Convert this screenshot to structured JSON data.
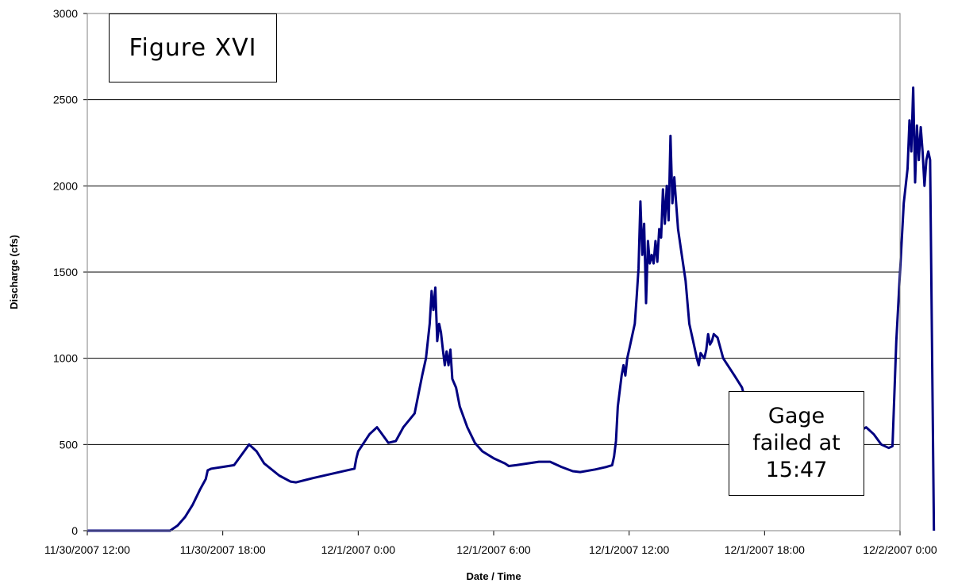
{
  "chart_data": {
    "type": "line",
    "xlabel": "Date / Time",
    "ylabel": "Discharge (cfs)",
    "x_tick_labels": [
      "11/30/2007 12:00",
      "11/30/2007 18:00",
      "12/1/2007 0:00",
      "12/1/2007 6:00",
      "12/1/2007 12:00",
      "12/1/2007 18:00",
      "12/2/2007 0:00"
    ],
    "xlim": [
      "2007-11-30T12:00",
      "2007-12-02T00:00"
    ],
    "y_ticks": [
      0,
      500,
      1000,
      1500,
      2000,
      2500,
      3000
    ],
    "ylim": [
      0,
      3000
    ],
    "grid": "horizontal",
    "line_color": "#000080",
    "series": [
      {
        "points": [
          [
            "2007-11-30T12:00",
            0
          ],
          [
            "2007-11-30T13:00",
            0
          ],
          [
            "2007-11-30T14:00",
            0
          ],
          [
            "2007-11-30T15:00",
            0
          ],
          [
            "2007-11-30T15:40",
            0
          ],
          [
            "2007-11-30T16:00",
            30
          ],
          [
            "2007-11-30T16:20",
            80
          ],
          [
            "2007-11-30T16:40",
            150
          ],
          [
            "2007-11-30T17:00",
            240
          ],
          [
            "2007-11-30T17:15",
            300
          ],
          [
            "2007-11-30T17:20",
            350
          ],
          [
            "2007-11-30T17:30",
            360
          ],
          [
            "2007-11-30T18:00",
            370
          ],
          [
            "2007-11-30T18:30",
            380
          ],
          [
            "2007-11-30T18:50",
            440
          ],
          [
            "2007-11-30T19:10",
            500
          ],
          [
            "2007-11-30T19:30",
            460
          ],
          [
            "2007-11-30T19:50",
            390
          ],
          [
            "2007-11-30T20:30",
            320
          ],
          [
            "2007-11-30T21:00",
            285
          ],
          [
            "2007-11-30T21:15",
            280
          ],
          [
            "2007-11-30T22:00",
            305
          ],
          [
            "2007-11-30T23:00",
            335
          ],
          [
            "2007-11-30T23:50",
            360
          ],
          [
            "2007-11-30T23:55",
            420
          ],
          [
            "2007-12-01T00:00",
            460
          ],
          [
            "2007-12-01T00:30",
            560
          ],
          [
            "2007-12-01T00:50",
            600
          ],
          [
            "2007-12-01T01:00",
            570
          ],
          [
            "2007-12-01T01:20",
            510
          ],
          [
            "2007-12-01T01:40",
            520
          ],
          [
            "2007-12-01T02:00",
            600
          ],
          [
            "2007-12-01T02:30",
            680
          ],
          [
            "2007-12-01T02:50",
            900
          ],
          [
            "2007-12-01T03:00",
            1000
          ],
          [
            "2007-12-01T03:10",
            1200
          ],
          [
            "2007-12-01T03:15",
            1390
          ],
          [
            "2007-12-01T03:20",
            1280
          ],
          [
            "2007-12-01T03:25",
            1410
          ],
          [
            "2007-12-01T03:30",
            1100
          ],
          [
            "2007-12-01T03:35",
            1200
          ],
          [
            "2007-12-01T03:40",
            1150
          ],
          [
            "2007-12-01T03:45",
            1050
          ],
          [
            "2007-12-01T03:50",
            960
          ],
          [
            "2007-12-01T03:55",
            1040
          ],
          [
            "2007-12-01T04:00",
            960
          ],
          [
            "2007-12-01T04:05",
            1050
          ],
          [
            "2007-12-01T04:10",
            880
          ],
          [
            "2007-12-01T04:20",
            830
          ],
          [
            "2007-12-01T04:30",
            720
          ],
          [
            "2007-12-01T04:50",
            600
          ],
          [
            "2007-12-01T05:10",
            510
          ],
          [
            "2007-12-01T05:30",
            460
          ],
          [
            "2007-12-01T06:00",
            420
          ],
          [
            "2007-12-01T06:30",
            390
          ],
          [
            "2007-12-01T06:40",
            375
          ],
          [
            "2007-12-01T07:00",
            380
          ],
          [
            "2007-12-01T08:00",
            400
          ],
          [
            "2007-12-01T08:30",
            400
          ],
          [
            "2007-12-01T09:00",
            370
          ],
          [
            "2007-12-01T09:30",
            345
          ],
          [
            "2007-12-01T09:50",
            340
          ],
          [
            "2007-12-01T10:30",
            355
          ],
          [
            "2007-12-01T11:00",
            370
          ],
          [
            "2007-12-01T11:15",
            380
          ],
          [
            "2007-12-01T11:20",
            430
          ],
          [
            "2007-12-01T11:25",
            520
          ],
          [
            "2007-12-01T11:30",
            720
          ],
          [
            "2007-12-01T11:40",
            900
          ],
          [
            "2007-12-01T11:45",
            960
          ],
          [
            "2007-12-01T11:50",
            900
          ],
          [
            "2007-12-01T11:55",
            1000
          ],
          [
            "2007-12-01T12:00",
            1050
          ],
          [
            "2007-12-01T12:10",
            1150
          ],
          [
            "2007-12-01T12:15",
            1200
          ],
          [
            "2007-12-01T12:20",
            1350
          ],
          [
            "2007-12-01T12:25",
            1520
          ],
          [
            "2007-12-01T12:30",
            1910
          ],
          [
            "2007-12-01T12:35",
            1600
          ],
          [
            "2007-12-01T12:40",
            1780
          ],
          [
            "2007-12-01T12:45",
            1320
          ],
          [
            "2007-12-01T12:50",
            1680
          ],
          [
            "2007-12-01T12:55",
            1550
          ],
          [
            "2007-12-01T13:00",
            1600
          ],
          [
            "2007-12-01T13:05",
            1550
          ],
          [
            "2007-12-01T13:10",
            1680
          ],
          [
            "2007-12-01T13:15",
            1560
          ],
          [
            "2007-12-01T13:20",
            1750
          ],
          [
            "2007-12-01T13:25",
            1700
          ],
          [
            "2007-12-01T13:30",
            1980
          ],
          [
            "2007-12-01T13:35",
            1780
          ],
          [
            "2007-12-01T13:40",
            2000
          ],
          [
            "2007-12-01T13:45",
            1800
          ],
          [
            "2007-12-01T13:50",
            2290
          ],
          [
            "2007-12-01T13:55",
            1900
          ],
          [
            "2007-12-01T14:00",
            2050
          ],
          [
            "2007-12-01T14:05",
            1900
          ],
          [
            "2007-12-01T14:10",
            1750
          ],
          [
            "2007-12-01T14:20",
            1600
          ],
          [
            "2007-12-01T14:30",
            1450
          ],
          [
            "2007-12-01T14:40",
            1200
          ],
          [
            "2007-12-01T14:50",
            1100
          ],
          [
            "2007-12-01T15:00",
            1000
          ],
          [
            "2007-12-01T15:05",
            960
          ],
          [
            "2007-12-01T15:10",
            1030
          ],
          [
            "2007-12-01T15:20",
            1000
          ],
          [
            "2007-12-01T15:25",
            1050
          ],
          [
            "2007-12-01T15:30",
            1140
          ],
          [
            "2007-12-01T15:35",
            1080
          ],
          [
            "2007-12-01T15:40",
            1100
          ],
          [
            "2007-12-01T15:45",
            1140
          ],
          [
            "2007-12-01T15:55",
            1120
          ],
          [
            "2007-12-01T16:10",
            1000
          ],
          [
            "2007-12-01T16:40",
            900
          ],
          [
            "2007-12-01T17:00",
            830
          ],
          [
            "2007-12-01T17:10",
            750
          ],
          [
            "2007-12-01T17:20",
            700
          ],
          [
            "2007-12-01T17:30",
            640
          ],
          [
            "2007-12-01T17:40",
            580
          ],
          [
            "2007-12-01T18:00",
            560
          ],
          [
            "2007-12-01T19:00",
            530
          ],
          [
            "2007-12-01T19:50",
            510
          ],
          [
            "2007-12-01T20:00",
            490
          ],
          [
            "2007-12-01T21:00",
            520
          ],
          [
            "2007-12-01T22:00",
            560
          ],
          [
            "2007-12-01T22:30",
            600
          ],
          [
            "2007-12-01T22:50",
            560
          ],
          [
            "2007-12-01T23:10",
            500
          ],
          [
            "2007-12-01T23:30",
            480
          ],
          [
            "2007-12-01T23:40",
            490
          ],
          [
            "2007-12-01T23:50",
            1100
          ],
          [
            "2007-12-02T00:00",
            1500
          ],
          [
            "2007-12-02T00:10",
            1900
          ],
          [
            "2007-12-02T00:20",
            2100
          ],
          [
            "2007-12-02T00:25",
            2380
          ],
          [
            "2007-12-02T00:30",
            2200
          ],
          [
            "2007-12-02T00:35",
            2570
          ],
          [
            "2007-12-02T00:40",
            2020
          ],
          [
            "2007-12-02T00:45",
            2350
          ],
          [
            "2007-12-02T00:50",
            2150
          ],
          [
            "2007-12-02T00:55",
            2340
          ],
          [
            "2007-12-02T01:00",
            2200
          ],
          [
            "2007-12-02T01:05",
            2000
          ],
          [
            "2007-12-02T01:10",
            2150
          ],
          [
            "2007-12-02T01:15",
            2200
          ],
          [
            "2007-12-02T01:20",
            2150
          ],
          [
            "2007-12-02T01:30",
            0
          ]
        ]
      }
    ]
  },
  "annotations": {
    "figure_label": "Figure XVI",
    "gage_note": "Gage\nfailed at\n15:47"
  }
}
